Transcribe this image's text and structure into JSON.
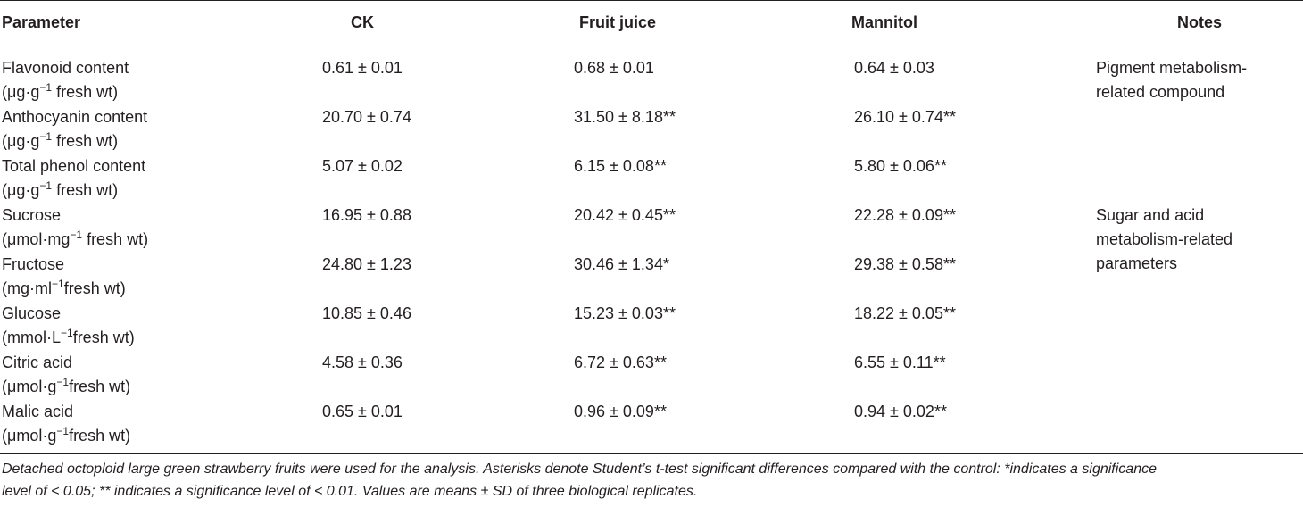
{
  "table": {
    "headers": {
      "parameter": "Parameter",
      "ck": "CK",
      "fruit_juice": "Fruit juice",
      "mannitol": "Mannitol",
      "notes": "Notes"
    },
    "rows": [
      {
        "name": "Flavonoid content",
        "unit": "(μg·g−1 fresh wt)",
        "ck": "0.61 ± 0.01",
        "fruit_juice": "0.68 ± 0.01",
        "mannitol": "0.64 ± 0.03"
      },
      {
        "name": "Anthocyanin content",
        "unit": "(μg·g−1 fresh wt)",
        "ck": "20.70 ± 0.74",
        "fruit_juice": "31.50 ± 8.18**",
        "mannitol": "26.10 ± 0.74**"
      },
      {
        "name": "Total phenol content",
        "unit": "(μg·g−1 fresh wt)",
        "ck": "5.07 ± 0.02",
        "fruit_juice": "6.15 ± 0.08**",
        "mannitol": "5.80 ± 0.06**"
      },
      {
        "name": "Sucrose",
        "unit": "(μmol·mg−1 fresh wt)",
        "ck": "16.95 ± 0.88",
        "fruit_juice": "20.42 ± 0.45**",
        "mannitol": "22.28 ± 0.09**"
      },
      {
        "name": "Fructose",
        "unit": "(mg·ml−1fresh wt)",
        "ck": "24.80 ± 1.23",
        "fruit_juice": "30.46 ± 1.34*",
        "mannitol": "29.38 ± 0.58**"
      },
      {
        "name": "Glucose",
        "unit": "(mmol·L−1fresh wt)",
        "ck": "10.85 ± 0.46",
        "fruit_juice": "15.23 ± 0.03**",
        "mannitol": "18.22 ± 0.05**"
      },
      {
        "name": "Citric acid",
        "unit": "(μmol·g−1fresh wt)",
        "ck": "4.58 ± 0.36",
        "fruit_juice": "6.72 ± 0.63**",
        "mannitol": "6.55 ± 0.11**"
      },
      {
        "name": "Malic acid",
        "unit": "(μmol·g−1fresh wt)",
        "ck": "0.65 ± 0.01",
        "fruit_juice": "0.96 ± 0.09**",
        "mannitol": "0.94 ± 0.02**"
      }
    ],
    "notes": [
      {
        "lines": [
          "Pigment metabolism-",
          "related compound"
        ]
      },
      {
        "lines": [
          "Sugar and acid",
          "metabolism-related",
          "parameters"
        ]
      }
    ]
  },
  "footnote": {
    "line1": "Detached octoploid large green strawberry fruits were used for the analysis. Asterisks denote Student’s t-test significant differences compared with the control: *indicates a significance",
    "line2": "level of < 0.05; ** indicates a significance level of < 0.01. Values are means ± SD of three biological replicates."
  }
}
